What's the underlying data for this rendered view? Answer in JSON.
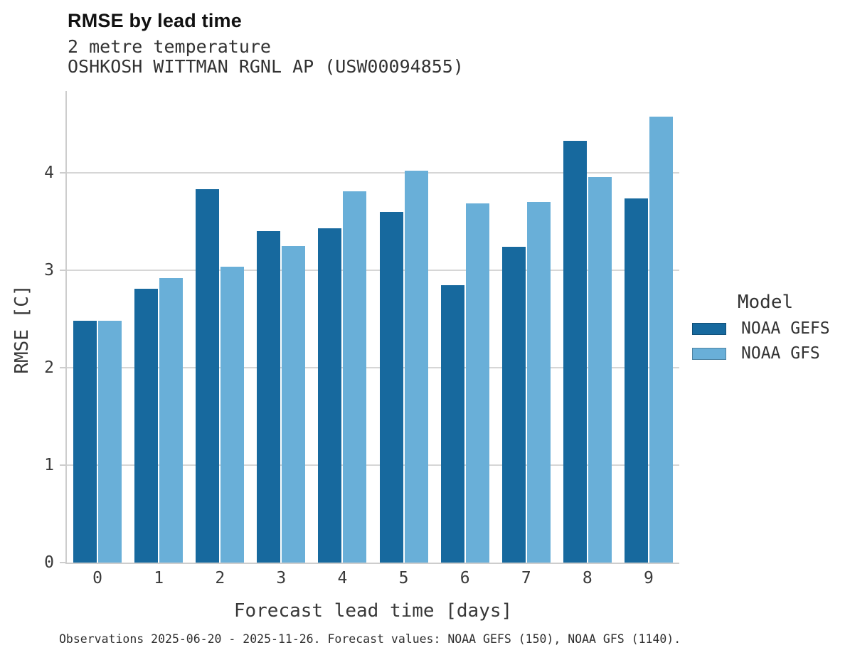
{
  "header": {
    "title": "RMSE by lead time",
    "subtitle1": "2 metre temperature",
    "subtitle2": "OSHKOSH WITTMAN RGNL AP (USW00094855)"
  },
  "axes": {
    "xlabel": "Forecast lead time [days]",
    "ylabel": "RMSE [C]"
  },
  "legend": {
    "title": "Model",
    "items": [
      {
        "label": "NOAA GEFS",
        "color": "#17699E"
      },
      {
        "label": "NOAA GFS",
        "color": "#69AFD8"
      }
    ]
  },
  "footer": {
    "caption": "Observations 2025-06-20 - 2025-11-26. Forecast values: NOAA GEFS (150), NOAA GFS (1140)."
  },
  "colors": {
    "gefs": "#17699E",
    "gfs": "#69AFD8",
    "gridline": "#d6d6d6",
    "spine": "#cdcdcd"
  },
  "chart_data": {
    "type": "bar",
    "title": "RMSE by lead time",
    "subtitle": [
      "2 metre temperature",
      "OSHKOSH WITTMAN RGNL AP (USW00094855)"
    ],
    "categories": [
      "0",
      "1",
      "2",
      "3",
      "4",
      "5",
      "6",
      "7",
      "8",
      "9"
    ],
    "series": [
      {
        "name": "NOAA GEFS",
        "color": "#17699E",
        "values": [
          2.48,
          2.81,
          3.83,
          3.4,
          3.43,
          3.6,
          2.85,
          3.24,
          4.33,
          3.74
        ]
      },
      {
        "name": "NOAA GFS",
        "color": "#69AFD8",
        "values": [
          2.48,
          2.92,
          3.04,
          3.25,
          3.81,
          4.02,
          3.69,
          3.7,
          3.96,
          4.58
        ]
      }
    ],
    "xlabel": "Forecast lead time [days]",
    "ylabel": "RMSE [C]",
    "ylim": [
      0,
      4.84
    ],
    "yticks": [
      0,
      1,
      2,
      3,
      4
    ],
    "grid": true,
    "legend_title": "Model",
    "legend_position": "right",
    "caption": "Observations 2025-06-20 - 2025-11-26. Forecast values: NOAA GEFS (150), NOAA GFS (1140)."
  }
}
